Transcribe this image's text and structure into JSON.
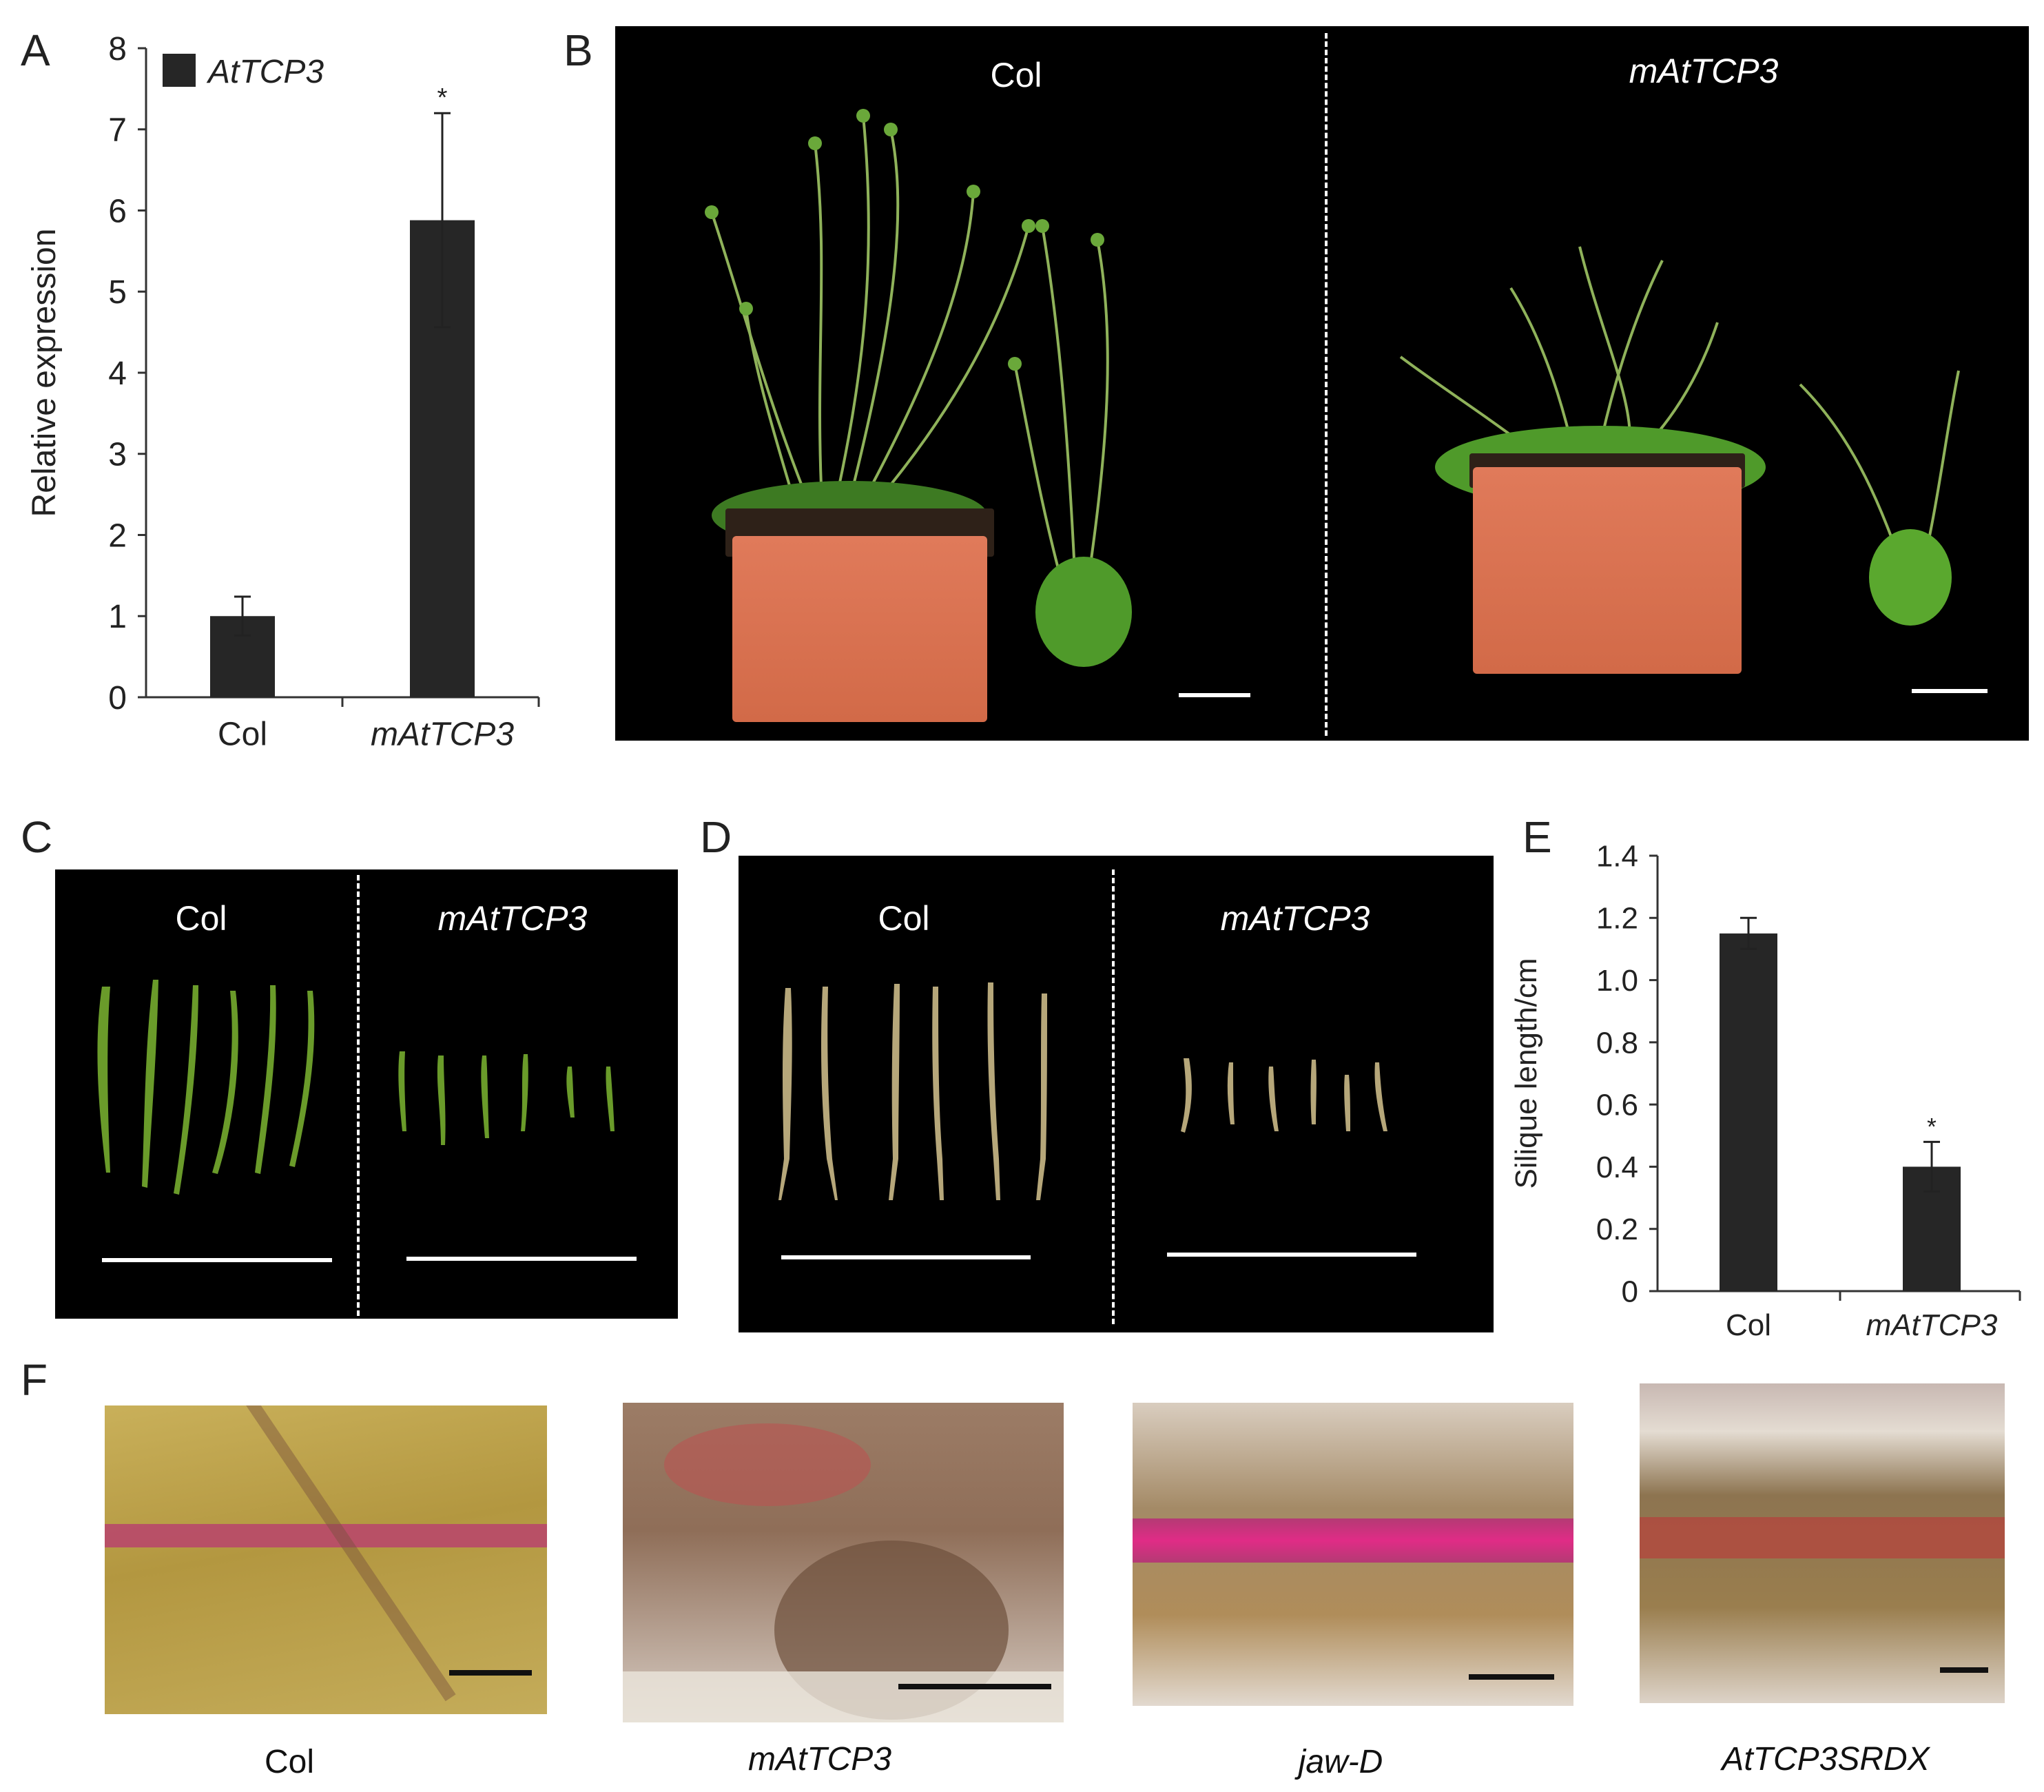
{
  "panels": {
    "a_letter": "A",
    "b_letter": "B",
    "c_letter": "C",
    "d_letter": "D",
    "e_letter": "E",
    "f_letter": "F"
  },
  "chart_data": [
    {
      "type": "bar",
      "panel": "A",
      "categories": [
        "Col",
        "mAtTCP3"
      ],
      "series": [
        {
          "name": "AtTCP3",
          "values": [
            1.0,
            5.88
          ],
          "errors": [
            0.24,
            1.32
          ],
          "color": "#262626"
        }
      ],
      "ylabel": "Relative expression",
      "xlabel": "",
      "ylim": [
        0,
        8
      ],
      "yticks": [
        "0",
        "1",
        "2",
        "3",
        "4",
        "5",
        "6",
        "7",
        "8"
      ],
      "annotations": [
        {
          "category": "mAtTCP3",
          "text": "*"
        }
      ],
      "legend": "top-left",
      "grid": false
    },
    {
      "type": "bar",
      "panel": "E",
      "categories": [
        "Col",
        "mAtTCP3"
      ],
      "series": [
        {
          "values": [
            1.15,
            0.4
          ],
          "errors": [
            0.05,
            0.08
          ],
          "color": "#262626"
        }
      ],
      "ylabel": "Silique length/cm",
      "xlabel": "",
      "ylim": [
        0,
        1.4
      ],
      "yticks": [
        "0",
        "0.2",
        "0.4",
        "0.6",
        "0.8",
        "1.0",
        "1.2",
        "1.4"
      ],
      "annotations": [
        {
          "category": "mAtTCP3",
          "text": "*"
        }
      ],
      "grid": false
    }
  ],
  "photos": {
    "b": {
      "left_label": "Col",
      "right_label": "mAtTCP3"
    },
    "c": {
      "left_label": "Col",
      "right_label": "mAtTCP3"
    },
    "d": {
      "left_label": "Col",
      "right_label": "mAtTCP3"
    }
  },
  "micrographs": [
    {
      "label": "Col"
    },
    {
      "label": "mAtTCP3"
    },
    {
      "label": "jaw-D"
    },
    {
      "label": "AtTCP3SRDX"
    }
  ],
  "colors": {
    "bar": "#262626",
    "photo_bg": "#000000",
    "pot": "#d86f4e",
    "silique_green": "#6a9b2a",
    "silique_dry": "#b6a77a",
    "stain": "#c2386b"
  }
}
